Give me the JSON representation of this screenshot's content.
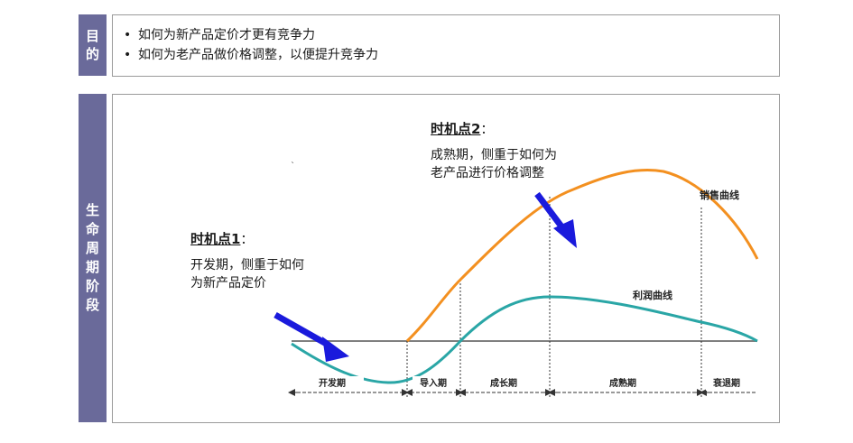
{
  "purpose": {
    "label": "目的",
    "bullets": [
      "如何为新产品定价才更有竞争力",
      "如何为老产品做价格调整，以便提升竞争力"
    ]
  },
  "lifecycle": {
    "label": "生命周期阶段",
    "point1": {
      "title": "时机点1",
      "colon": "：",
      "line1": "开发期，侧重于如何",
      "line2": "为新产品定价"
    },
    "point2": {
      "title": "时机点2",
      "colon": "：",
      "line1": "成熟期，侧重于如何为",
      "line2": "老产品进行价格调整"
    },
    "curves": {
      "sales": "销售曲线",
      "profit": "利润曲线"
    },
    "phases": [
      "开发期",
      "导入期",
      "成长期",
      "成熟期",
      "衰退期"
    ],
    "colors": {
      "sales": "#f39020",
      "profit": "#2aa6a6",
      "arrow": "#1a1adc",
      "baseline": "#808080",
      "sidebar": "#6a6a9a"
    }
  }
}
